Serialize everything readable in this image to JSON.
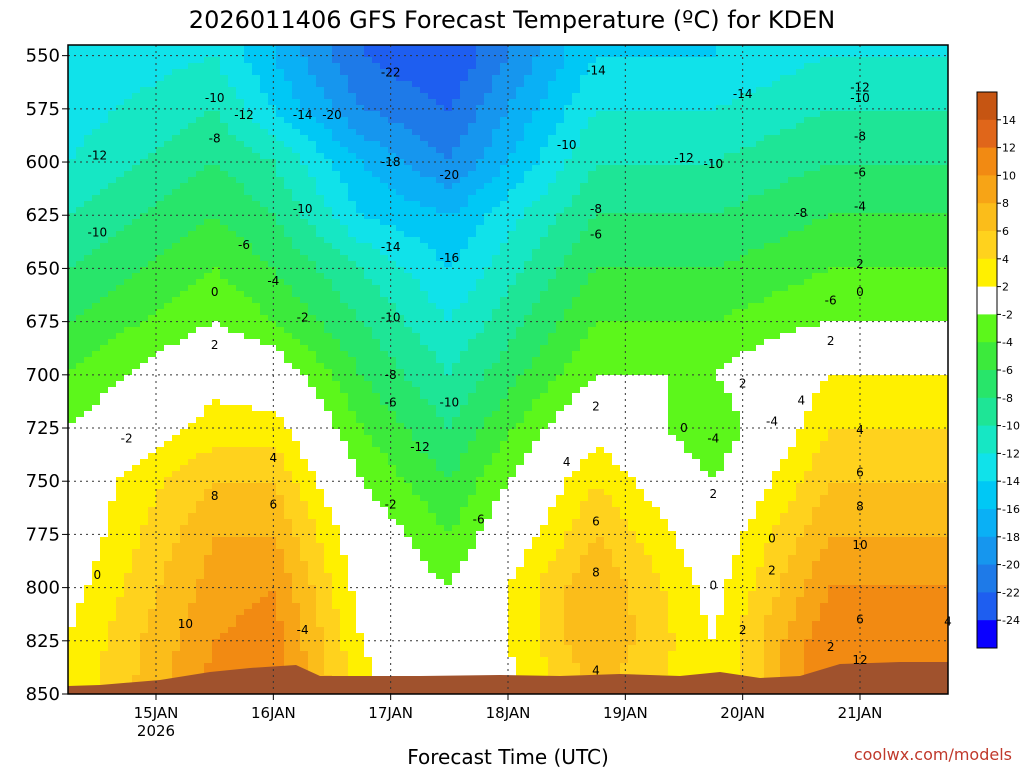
{
  "chart_data": {
    "type": "heatmap",
    "title": "2026011406 GFS Forecast Temperature (ºC) for KDEN",
    "xlabel": "Forecast Time (UTC)",
    "credit": "coolwx.com/models",
    "y_axis": {
      "ticks": [
        550,
        575,
        600,
        625,
        650,
        675,
        700,
        725,
        750,
        775,
        800,
        825,
        850
      ],
      "range": [
        850,
        545
      ],
      "units": "hPa"
    },
    "x_axis": {
      "ticks": [
        "15JAN",
        "16JAN",
        "17JAN",
        "18JAN",
        "19JAN",
        "20JAN",
        "21JAN"
      ],
      "sublabel": "2026",
      "range": [
        "2026-01-14 06",
        "2026-01-21 18"
      ]
    },
    "colorbar": {
      "ticks": [
        14,
        12,
        10,
        8,
        6,
        4,
        2,
        -2,
        -4,
        -6,
        -8,
        -10,
        -12,
        -14,
        -16,
        -18,
        -20,
        -22,
        -24
      ],
      "bins": [
        {
          "max": 16,
          "color": "#c65512"
        },
        {
          "max": 14,
          "color": "#e0661a"
        },
        {
          "max": 12,
          "color": "#f28a12"
        },
        {
          "max": 10,
          "color": "#f7a416"
        },
        {
          "max": 8,
          "color": "#fbbd1a"
        },
        {
          "max": 6,
          "color": "#ffd21d"
        },
        {
          "max": 4,
          "color": "#fff000"
        },
        {
          "max": 2,
          "color": "#ffffff"
        },
        {
          "max": -2,
          "color": "#5cf71b"
        },
        {
          "max": -4,
          "color": "#3cea3c"
        },
        {
          "max": -6,
          "color": "#28e56a"
        },
        {
          "max": -8,
          "color": "#1ee596"
        },
        {
          "max": -10,
          "color": "#16e7c4"
        },
        {
          "max": -12,
          "color": "#10e2ea"
        },
        {
          "max": -14,
          "color": "#00c8f5"
        },
        {
          "max": -16,
          "color": "#0ab0f5"
        },
        {
          "max": -18,
          "color": "#1696ee"
        },
        {
          "max": -20,
          "color": "#1e7ae8"
        },
        {
          "max": -22,
          "color": "#1e5ef0"
        },
        {
          "max": -24,
          "color": "#0a00ff"
        }
      ]
    },
    "profiles": [
      {
        "time": "2026-01-14 06",
        "levels": [
          550,
          575,
          600,
          625,
          650,
          675,
          700,
          725,
          750,
          775,
          800,
          825,
          850
        ],
        "temps": [
          -14,
          -13,
          -12,
          -10,
          -8,
          -6,
          -4,
          -2,
          0,
          0,
          1,
          2,
          2
        ]
      },
      {
        "time": "2026-01-15 12",
        "levels": [
          550,
          575,
          600,
          625,
          650,
          675,
          700,
          725,
          750,
          775,
          800,
          825,
          850
        ],
        "temps": [
          -12,
          -10,
          -8,
          -6,
          -4,
          -2,
          1,
          3,
          6,
          8,
          9,
          10,
          11
        ]
      },
      {
        "time": "2026-01-16 00",
        "levels": [
          550,
          575,
          600,
          625,
          650,
          675,
          700,
          725,
          750,
          775,
          800,
          825,
          850
        ],
        "temps": [
          -16,
          -14,
          -10,
          -8,
          -6,
          -4,
          0,
          3,
          6,
          8,
          10,
          11,
          12
        ]
      },
      {
        "time": "2026-01-16 18",
        "levels": [
          550,
          575,
          600,
          625,
          650,
          675,
          700,
          725,
          750,
          775,
          800,
          825,
          850
        ],
        "temps": [
          -22,
          -20,
          -16,
          -14,
          -10,
          -8,
          -6,
          -4,
          -2,
          0,
          1,
          2,
          3
        ]
      },
      {
        "time": "2026-01-17 12",
        "levels": [
          550,
          575,
          600,
          625,
          650,
          675,
          700,
          725,
          750,
          775,
          800,
          825,
          850
        ],
        "temps": [
          -24,
          -22,
          -20,
          -16,
          -14,
          -12,
          -10,
          -8,
          -6,
          -4,
          -2,
          -2,
          -2
        ]
      },
      {
        "time": "2026-01-18 18",
        "levels": [
          550,
          575,
          600,
          625,
          650,
          675,
          700,
          725,
          750,
          775,
          800,
          825,
          850
        ],
        "temps": [
          -14,
          -12,
          -10,
          -8,
          -6,
          -4,
          -2,
          1,
          4,
          6,
          8,
          8,
          6
        ]
      },
      {
        "time": "2026-01-19 18",
        "levels": [
          550,
          575,
          600,
          625,
          650,
          675,
          700,
          725,
          750,
          775,
          800,
          825,
          850
        ],
        "temps": [
          -14,
          -12,
          -10,
          -8,
          -6,
          -4,
          -2,
          -4,
          -2,
          0,
          1,
          2,
          2
        ]
      },
      {
        "time": "2026-01-20 18",
        "levels": [
          550,
          575,
          600,
          625,
          650,
          675,
          700,
          725,
          750,
          775,
          800,
          825,
          850
        ],
        "temps": [
          -12,
          -10,
          -8,
          -6,
          -4,
          -2,
          2,
          4,
          6,
          8,
          10,
          12,
          12
        ]
      }
    ],
    "contour_labels": [
      {
        "time": "2026-01-14 12",
        "level": 597,
        "value": "-12"
      },
      {
        "time": "2026-01-14 12",
        "level": 633,
        "value": "-10"
      },
      {
        "time": "2026-01-14 18",
        "level": 730,
        "value": "-2"
      },
      {
        "time": "2026-01-14 12",
        "level": 794,
        "value": "0"
      },
      {
        "time": "2026-01-15 12",
        "level": 570,
        "value": "-10"
      },
      {
        "time": "2026-01-15 12",
        "level": 589,
        "value": "-8"
      },
      {
        "time": "2026-01-15 18",
        "level": 578,
        "value": "-12"
      },
      {
        "time": "2026-01-16 06",
        "level": 578,
        "value": "-14"
      },
      {
        "time": "2026-01-16 12",
        "level": 578,
        "value": "-20"
      },
      {
        "time": "2026-01-17 00",
        "level": 558,
        "value": "-22"
      },
      {
        "time": "2026-01-16 06",
        "level": 622,
        "value": "-10"
      },
      {
        "time": "2026-01-15 18",
        "level": 639,
        "value": "-6"
      },
      {
        "time": "2026-01-16 00",
        "level": 656,
        "value": "-4"
      },
      {
        "time": "2026-01-15 12",
        "level": 661,
        "value": "0"
      },
      {
        "time": "2026-01-16 06",
        "level": 673,
        "value": "-2"
      },
      {
        "time": "2026-01-15 12",
        "level": 686,
        "value": "2"
      },
      {
        "time": "2026-01-16 00",
        "level": 739,
        "value": "4"
      },
      {
        "time": "2026-01-15 12",
        "level": 757,
        "value": "8"
      },
      {
        "time": "2026-01-16 00",
        "level": 761,
        "value": "6"
      },
      {
        "time": "2026-01-15 06",
        "level": 817,
        "value": "10"
      },
      {
        "time": "2026-01-16 06",
        "level": 820,
        "value": "-4"
      },
      {
        "time": "2026-01-17 00",
        "level": 600,
        "value": "-18"
      },
      {
        "time": "2026-01-17 12",
        "level": 606,
        "value": "-20"
      },
      {
        "time": "2026-01-17 00",
        "level": 640,
        "value": "-14"
      },
      {
        "time": "2026-01-17 12",
        "level": 645,
        "value": "-16"
      },
      {
        "time": "2026-01-17 00",
        "level": 673,
        "value": "-10"
      },
      {
        "time": "2026-01-17 00",
        "level": 700,
        "value": "-8"
      },
      {
        "time": "2026-01-17 00",
        "level": 713,
        "value": "-6"
      },
      {
        "time": "2026-01-17 12",
        "level": 713,
        "value": "-10"
      },
      {
        "time": "2026-01-17 06",
        "level": 734,
        "value": "-12"
      },
      {
        "time": "2026-01-17 00",
        "level": 761,
        "value": "-2"
      },
      {
        "time": "2026-01-17 18",
        "level": 768,
        "value": "-6"
      },
      {
        "time": "2026-01-18 18",
        "level": 557,
        "value": "-14"
      },
      {
        "time": "2026-01-18 12",
        "level": 592,
        "value": "-10"
      },
      {
        "time": "2026-01-18 18",
        "level": 622,
        "value": "-8"
      },
      {
        "time": "2026-01-18 18",
        "level": 634,
        "value": "-6"
      },
      {
        "time": "2026-01-18 18",
        "level": 715,
        "value": "2"
      },
      {
        "time": "2026-01-18 12",
        "level": 741,
        "value": "4"
      },
      {
        "time": "2026-01-18 18",
        "level": 769,
        "value": "6"
      },
      {
        "time": "2026-01-18 18",
        "level": 793,
        "value": "8"
      },
      {
        "time": "2026-01-18 18",
        "level": 839,
        "value": "4"
      },
      {
        "time": "2026-01-19 12",
        "level": 598,
        "value": "-12"
      },
      {
        "time": "2026-01-19 18",
        "level": 601,
        "value": "-10"
      },
      {
        "time": "2026-01-19 12",
        "level": 725,
        "value": "0"
      },
      {
        "time": "2026-01-19 18",
        "level": 730,
        "value": "-4"
      },
      {
        "time": "2026-01-19 18",
        "level": 756,
        "value": "2"
      },
      {
        "time": "2026-01-20 00",
        "level": 704,
        "value": "2"
      },
      {
        "time": "2026-01-20 06",
        "level": 722,
        "value": "-4"
      },
      {
        "time": "2026-01-20 06",
        "level": 792,
        "value": "2"
      },
      {
        "time": "2026-01-20 06",
        "level": 777,
        "value": "0"
      },
      {
        "time": "2026-01-19 18",
        "level": 799,
        "value": "0"
      },
      {
        "time": "2026-01-20 00",
        "level": 820,
        "value": "2"
      },
      {
        "time": "2026-01-20 00",
        "level": 568,
        "value": "-14"
      },
      {
        "time": "2026-01-20 12",
        "level": 624,
        "value": "-8"
      },
      {
        "time": "2026-01-20 18",
        "level": 665,
        "value": "-6"
      },
      {
        "time": "2026-01-21 00",
        "level": 565,
        "value": "-12"
      },
      {
        "time": "2026-01-21 00",
        "level": 570,
        "value": "-10"
      },
      {
        "time": "2026-01-21 00",
        "level": 588,
        "value": "-8"
      },
      {
        "time": "2026-01-21 00",
        "level": 605,
        "value": "-6"
      },
      {
        "time": "2026-01-21 00",
        "level": 621,
        "value": "-4"
      },
      {
        "time": "2026-01-21 00",
        "level": 648,
        "value": "2"
      },
      {
        "time": "2026-01-21 00",
        "level": 661,
        "value": "0"
      },
      {
        "time": "2026-01-20 18",
        "level": 684,
        "value": "2"
      },
      {
        "time": "2026-01-21 00",
        "level": 726,
        "value": "4"
      },
      {
        "time": "2026-01-21 00",
        "level": 746,
        "value": "6"
      },
      {
        "time": "2026-01-21 00",
        "level": 762,
        "value": "8"
      },
      {
        "time": "2026-01-21 00",
        "level": 780,
        "value": "10"
      },
      {
        "time": "2026-01-21 00",
        "level": 815,
        "value": "6"
      },
      {
        "time": "2026-01-20 18",
        "level": 828,
        "value": "2"
      },
      {
        "time": "2026-01-21 00",
        "level": 834,
        "value": "12"
      },
      {
        "time": "2026-01-21 18",
        "level": 816,
        "value": "4"
      },
      {
        "time": "2026-01-20 12",
        "level": 712,
        "value": "4"
      }
    ]
  }
}
